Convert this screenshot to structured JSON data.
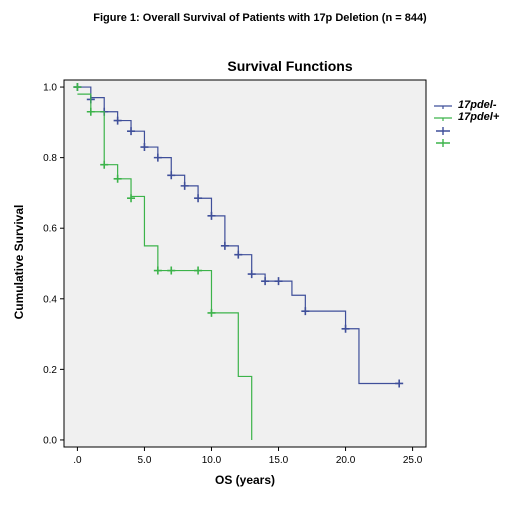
{
  "figure_title": "Figure 1:  Overall Survival of Patients with 17p Deletion (n = 844)",
  "chart_data": {
    "type": "line",
    "subtype": "kaplan-meier-step",
    "title": "Survival Functions",
    "xlabel": "OS (years)",
    "ylabel": "Cumulative Survival",
    "xlim": [
      -1,
      26
    ],
    "ylim": [
      -0.02,
      1.02
    ],
    "x_ticks": [
      0,
      5,
      10,
      15,
      20,
      25
    ],
    "x_tick_labels": [
      ".0",
      "5.0",
      "10.0",
      "15.0",
      "20.0",
      "25.0"
    ],
    "y_ticks": [
      0,
      0.2,
      0.4,
      0.6,
      0.8,
      1.0
    ],
    "y_tick_labels": [
      "0.0",
      "0.2",
      "0.4",
      "0.6",
      "0.8",
      "1.0"
    ],
    "plot_background": "#f0f0f0",
    "legend_position": "right",
    "series": [
      {
        "name": "17pdel-",
        "color": "#3f4f9a",
        "steps": [
          [
            0,
            1.0
          ],
          [
            1,
            0.97
          ],
          [
            2,
            0.93
          ],
          [
            3,
            0.905
          ],
          [
            4,
            0.875
          ],
          [
            5,
            0.83
          ],
          [
            6,
            0.8
          ],
          [
            7,
            0.75
          ],
          [
            8,
            0.72
          ],
          [
            9,
            0.685
          ],
          [
            10,
            0.635
          ],
          [
            11,
            0.55
          ],
          [
            12,
            0.525
          ],
          [
            13,
            0.47
          ],
          [
            14,
            0.45
          ],
          [
            16,
            0.41
          ],
          [
            17,
            0.365
          ],
          [
            20,
            0.315
          ],
          [
            21,
            0.16
          ],
          [
            24,
            0.16
          ]
        ],
        "censored": [
          [
            0,
            1.0
          ],
          [
            1,
            0.965
          ],
          [
            2,
            0.93
          ],
          [
            3,
            0.905
          ],
          [
            4,
            0.875
          ],
          [
            5,
            0.83
          ],
          [
            6,
            0.8
          ],
          [
            7,
            0.75
          ],
          [
            8,
            0.72
          ],
          [
            9,
            0.685
          ],
          [
            10,
            0.635
          ],
          [
            11,
            0.55
          ],
          [
            12,
            0.525
          ],
          [
            13,
            0.47
          ],
          [
            14,
            0.45
          ],
          [
            15,
            0.45
          ],
          [
            17,
            0.365
          ],
          [
            20,
            0.315
          ],
          [
            24,
            0.16
          ]
        ]
      },
      {
        "name": "17pdel+",
        "color": "#3cb34a",
        "steps": [
          [
            0,
            0.98
          ],
          [
            1,
            0.93
          ],
          [
            2,
            0.78
          ],
          [
            3,
            0.74
          ],
          [
            4,
            0.69
          ],
          [
            5,
            0.55
          ],
          [
            6,
            0.48
          ],
          [
            10,
            0.36
          ],
          [
            12,
            0.18
          ],
          [
            13,
            0.0
          ]
        ],
        "censored": [
          [
            0,
            1.0
          ],
          [
            1,
            0.93
          ],
          [
            2,
            0.78
          ],
          [
            3,
            0.74
          ],
          [
            4,
            0.685
          ],
          [
            6,
            0.48
          ],
          [
            7,
            0.48
          ],
          [
            9,
            0.48
          ],
          [
            10,
            0.36
          ]
        ]
      }
    ]
  }
}
